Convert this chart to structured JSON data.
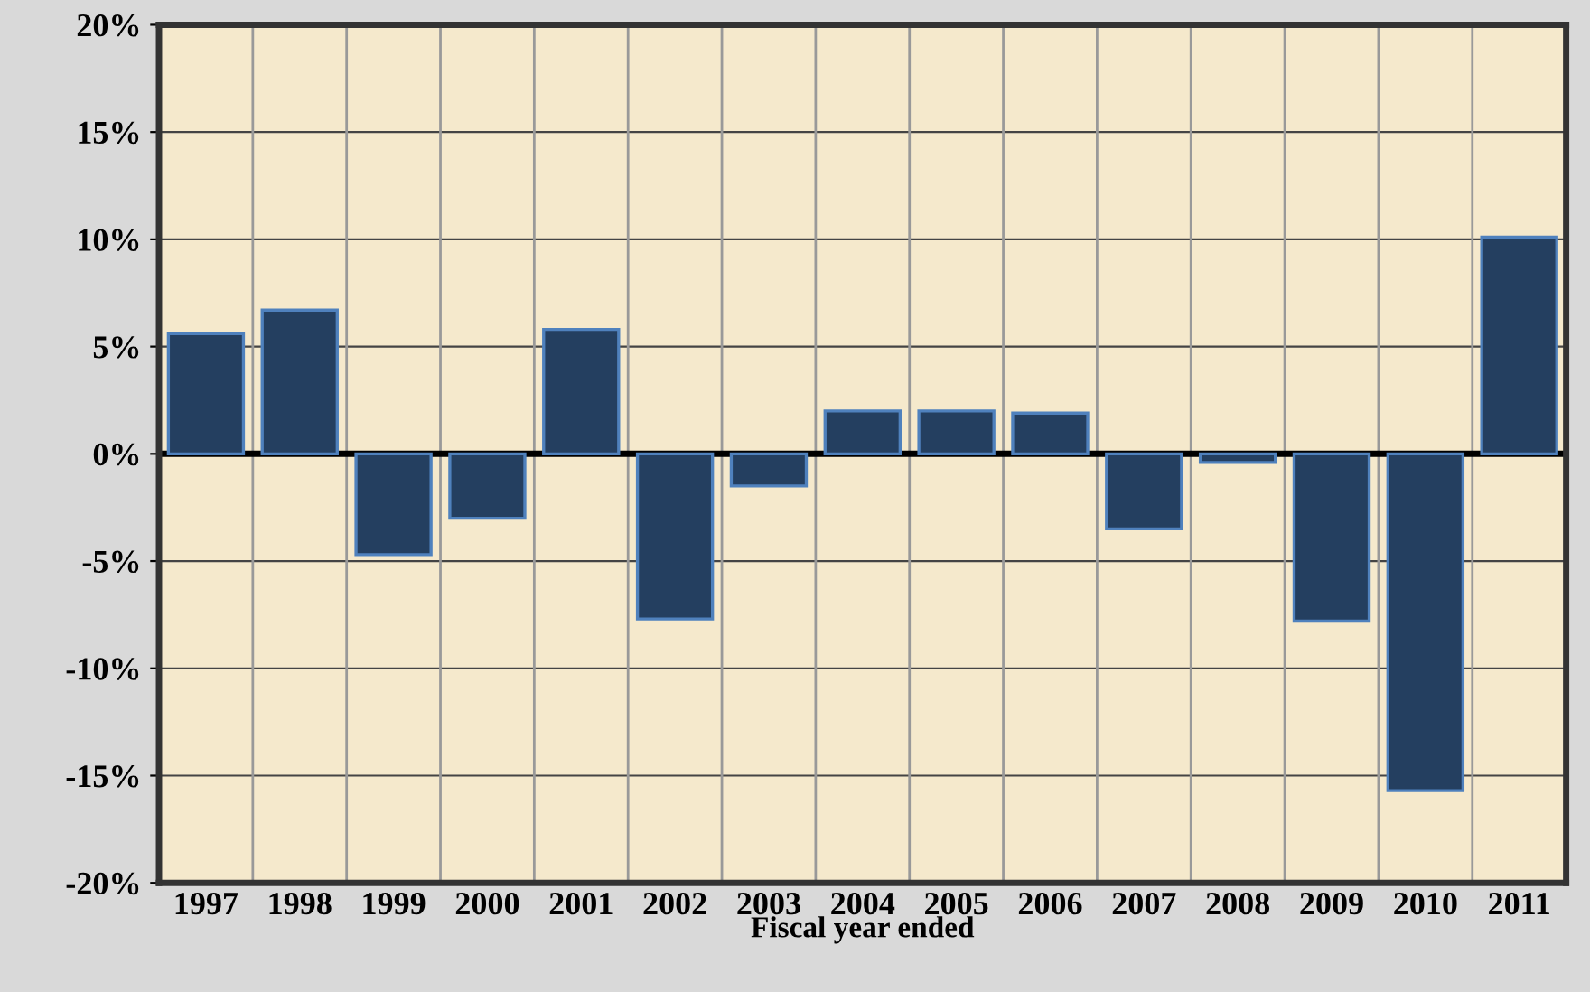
{
  "chart_data": {
    "type": "bar",
    "xlabel": "Fiscal year ended",
    "categories": [
      "1997",
      "1998",
      "1999",
      "2000",
      "2001",
      "2002",
      "2003",
      "2004",
      "2005",
      "2006",
      "2007",
      "2008",
      "2009",
      "2010",
      "2011"
    ],
    "values": [
      5.6,
      6.7,
      -4.7,
      -3.0,
      5.8,
      -7.7,
      -1.5,
      2.0,
      2.0,
      1.9,
      -3.5,
      -0.4,
      -7.8,
      -15.7,
      10.1
    ],
    "color": "#243f60",
    "ylim": [
      -20,
      20
    ],
    "yticks": [
      {
        "value": -20,
        "label": "-20%"
      },
      {
        "value": -15,
        "label": "-15%"
      },
      {
        "value": -10,
        "label": "-10%"
      },
      {
        "value": -5,
        "label": "-5%"
      },
      {
        "value": 0,
        "label": "0%"
      },
      {
        "value": 5,
        "label": "5%"
      },
      {
        "value": 10,
        "label": "10%"
      },
      {
        "value": 15,
        "label": "15%"
      },
      {
        "value": 20,
        "label": "20%"
      }
    ],
    "grid": true
  }
}
